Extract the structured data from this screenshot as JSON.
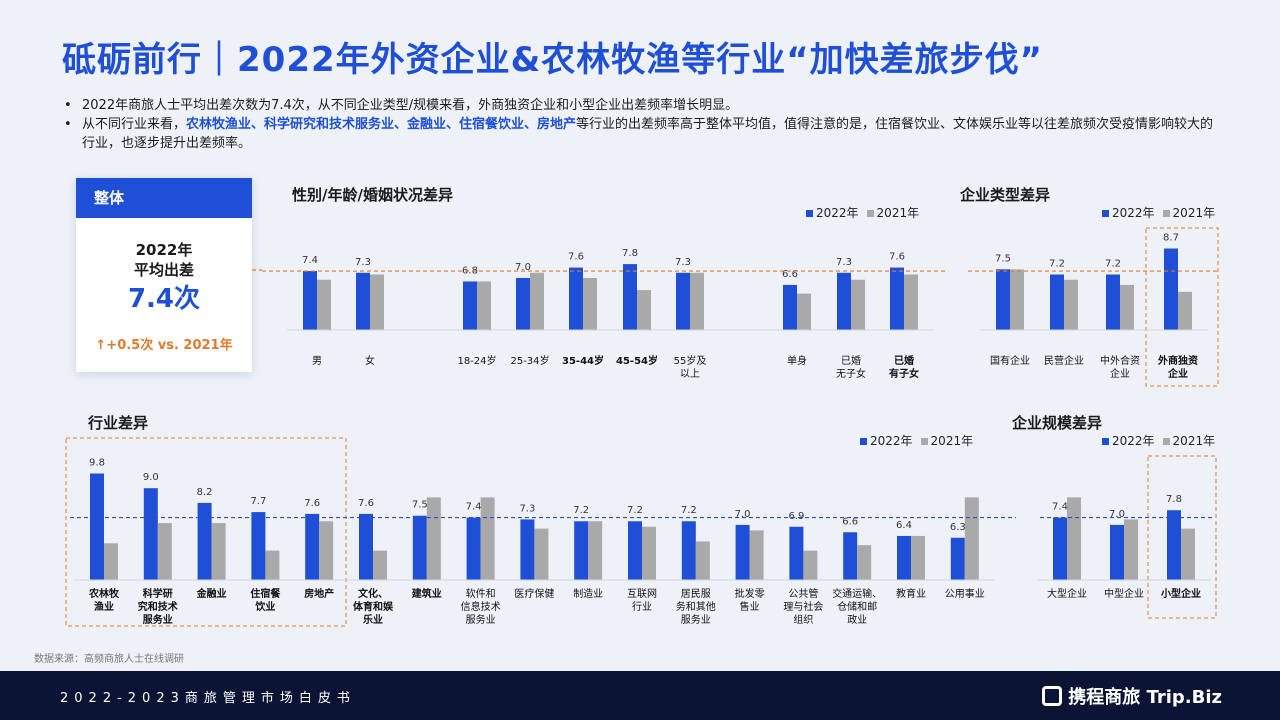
{
  "page": {
    "title": "砥砺前行｜2022年外资企业&农林牧渔等行业“加快差旅步伐”",
    "bullet1": "2022年商旅人士平均出差次数为7.4次，从不同企业类型/规模来看，外商独资企业和小型企业出差频率增长明显。",
    "bullet2_pre": "从不同行业来看，",
    "bullet2_hl": "农林牧渔业、科学研究和技术服务业、金融业、住宿餐饮业、房地产",
    "bullet2_post": "等行业的出差频率高于整体平均值，值得注意的是，住宿餐饮业、文体娱乐业等以往差旅频次受疫情影响较大的行业，也逐步提升出差频率。",
    "source": "数据来源：高频商旅人士在线调研",
    "footer_text": "2022-2023商旅管理市场白皮书",
    "footer_logo": "携程商旅 Trip.Biz"
  },
  "card": {
    "header": "整体",
    "line1": "2022年",
    "line2": "平均出差",
    "value": "7.4次",
    "arrow": "↑",
    "delta": "+0.5次 vs. 2021年"
  },
  "legend": {
    "y2022": "2022年",
    "y2021": "2021年"
  },
  "colors": {
    "y2022": "#1f4fd6",
    "y2021": "#a9a9a9",
    "avg_line": "#e07a2e",
    "highlight_box": "#e07a2e",
    "industry_avg_line": "#2a4fc0"
  },
  "chart_data": [
    {
      "type": "bar",
      "title": "性别/年龄/婚姻状况差异",
      "categories": [
        "男",
        "女",
        "18-24岁",
        "25-34岁",
        "35-44岁",
        "45-54岁",
        "55岁及\n以上",
        "单身",
        "已婚\n无子女",
        "已婚\n有子女"
      ],
      "bold_categories": [
        "35-44岁",
        "45-54岁",
        "已婚\n有子女"
      ],
      "series": [
        {
          "name": "2022年",
          "values": [
            7.4,
            7.3,
            6.8,
            7.0,
            7.6,
            7.8,
            7.3,
            6.6,
            7.3,
            7.6
          ]
        },
        {
          "name": "2021年",
          "values": [
            6.9,
            7.2,
            6.8,
            7.3,
            7.0,
            6.3,
            7.3,
            6.1,
            6.9,
            7.2
          ]
        }
      ],
      "reference_line": 7.4
    },
    {
      "type": "bar",
      "title": "企业类型差异",
      "categories": [
        "国有企业",
        "民营企业",
        "中外合资\n企业",
        "外商独资\n企业"
      ],
      "bold_categories": [
        "外商独资\n企业"
      ],
      "highlighted": [
        "外商独资\n企业"
      ],
      "series": [
        {
          "name": "2022年",
          "values": [
            7.5,
            7.2,
            7.2,
            8.7
          ]
        },
        {
          "name": "2021年",
          "values": [
            7.5,
            6.9,
            6.6,
            6.2
          ]
        }
      ],
      "reference_line": 7.4
    },
    {
      "type": "bar",
      "title": "行业差异",
      "categories": [
        "农林牧\n渔业",
        "科学研\n究和技术\n服务业",
        "金融业",
        "住宿餐\n饮业",
        "房地产",
        "文化、\n体育和娱\n乐业",
        "建筑业",
        "软件和\n信息技术\n服务业",
        "医疗保健",
        "制造业",
        "互联网\n行业",
        "居民服\n务和其他\n服务业",
        "批发零\n售业",
        "公共管\n理与社会\n组织",
        "交通运输、\n仓储和邮\n政业",
        "教育业",
        "公用事业"
      ],
      "bold_categories": [
        "农林牧\n渔业",
        "科学研\n究和技术\n服务业",
        "金融业",
        "住宿餐\n饮业",
        "房地产",
        "文化、\n体育和娱\n乐业",
        "建筑业"
      ],
      "highlighted": [
        "农林牧\n渔业",
        "科学研\n究和技术\n服务业",
        "金融业",
        "住宿餐\n饮业",
        "房地产"
      ],
      "series": [
        {
          "name": "2022年",
          "values": [
            9.8,
            9.0,
            8.2,
            7.7,
            7.6,
            7.6,
            7.5,
            7.4,
            7.3,
            7.2,
            7.2,
            7.2,
            7.0,
            6.9,
            6.6,
            6.4,
            6.3
          ]
        },
        {
          "name": "2021年",
          "values": [
            6.0,
            7.1,
            7.1,
            5.6,
            7.2,
            5.6,
            8.5,
            8.5,
            6.8,
            7.2,
            6.9,
            6.1,
            6.7,
            5.6,
            5.9,
            6.4,
            8.5
          ]
        }
      ],
      "reference_line": 7.4
    },
    {
      "type": "bar",
      "title": "企业规模差异",
      "categories": [
        "大型企业",
        "中型企业",
        "小型企业"
      ],
      "bold_categories": [
        "小型企业"
      ],
      "highlighted": [
        "小型企业"
      ],
      "series": [
        {
          "name": "2022年",
          "values": [
            7.4,
            7.0,
            7.8
          ]
        },
        {
          "name": "2021年",
          "values": [
            8.5,
            7.3,
            6.8
          ]
        }
      ],
      "reference_line": 7.4
    }
  ]
}
